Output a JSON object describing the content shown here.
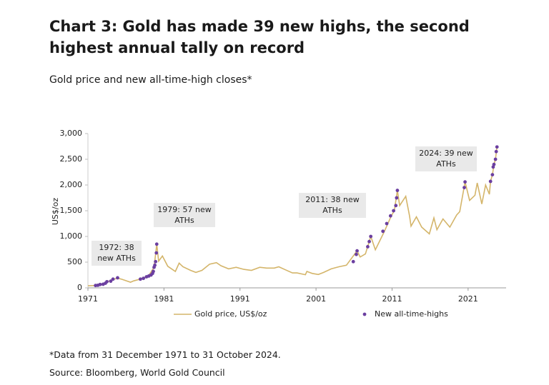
{
  "chart_data": {
    "type": "line",
    "title": "Chart 3: Gold has made 39 new highs, the second highest annual tally on record",
    "subtitle": "Gold price and new all-time-high closes*",
    "y_label": "US$/oz",
    "xlim": [
      1971,
      2026
    ],
    "xticks": [
      1971,
      1981,
      1991,
      2001,
      2011,
      2021
    ],
    "ylim": [
      0,
      3000
    ],
    "yticks": [
      0,
      500,
      {
        "value": 1000,
        "label": "1,000"
      },
      {
        "value": 1500,
        "label": "1,500"
      },
      {
        "value": 2000,
        "label": "2,000"
      },
      {
        "value": 2500,
        "label": "2,500"
      },
      {
        "value": 3000,
        "label": "3,000"
      }
    ],
    "series": [
      {
        "name": "Gold price, US$/oz",
        "color": "#d4b56a",
        "style": "line",
        "x": [
          1971.0,
          1972,
          1973,
          1974,
          1974.9,
          1975.5,
          1976.6,
          1977,
          1978,
          1979,
          1979.7,
          1980.05,
          1980.3,
          1980.8,
          1981.5,
          1982.5,
          1983,
          1983.5,
          1984.5,
          1985.2,
          1986,
          1987,
          1987.9,
          1988.5,
          1989.5,
          1990.5,
          1991.5,
          1992.5,
          1993.6,
          1994.5,
          1995.5,
          1996.1,
          1997,
          1997.9,
          1998.5,
          1999.6,
          1999.8,
          2000.5,
          2001.3,
          2002,
          2003,
          2004,
          2005,
          2006.4,
          2006.8,
          2007.5,
          2008.2,
          2008.8,
          2009.5,
          2010,
          2010.9,
          2011.3,
          2011.7,
          2012,
          2012.8,
          2013.3,
          2013.5,
          2014.2,
          2014.9,
          2015.9,
          2016.5,
          2016.9,
          2017.7,
          2018.6,
          2019.5,
          2019.9,
          2020.6,
          2021.2,
          2021.9,
          2022.2,
          2022.8,
          2023.3,
          2023.8,
          2023.95,
          2024.2,
          2024.4,
          2024.6,
          2024.8
        ],
        "values": [
          40,
          46,
          65,
          150,
          190,
          165,
          110,
          135,
          175,
          240,
          400,
          850,
          520,
          620,
          420,
          320,
          480,
          410,
          340,
          300,
          340,
          460,
          490,
          430,
          370,
          400,
          360,
          340,
          400,
          385,
          385,
          410,
          350,
          290,
          290,
          255,
          320,
          280,
          260,
          300,
          370,
          410,
          440,
          720,
          600,
          660,
          1000,
          740,
          950,
          1100,
          1400,
          1500,
          1895,
          1600,
          1780,
          1400,
          1200,
          1380,
          1180,
          1050,
          1360,
          1130,
          1340,
          1180,
          1420,
          1480,
          2060,
          1700,
          1800,
          2040,
          1630,
          2000,
          1820,
          2070,
          2200,
          2400,
          2500,
          2740
        ]
      },
      {
        "name": "New all-time-highs",
        "color": "#6b3fa0",
        "style": "markers",
        "x": [
          1972.0,
          1972.3,
          1972.6,
          1973.0,
          1973.3,
          1973.5,
          1974.0,
          1974.3,
          1974.9,
          1977.9,
          1978.3,
          1978.7,
          1979.0,
          1979.3,
          1979.5,
          1979.6,
          1979.7,
          1979.8,
          1979.9,
          1980.0,
          1980.05,
          2005.9,
          2006.3,
          2006.4,
          2007.8,
          2008.0,
          2008.2,
          2009.8,
          2010.3,
          2010.8,
          2011.2,
          2011.5,
          2011.6,
          2011.7,
          2020.5,
          2020.6,
          2023.95,
          2024.2,
          2024.3,
          2024.4,
          2024.6,
          2024.7,
          2024.8
        ],
        "values": [
          46,
          50,
          65,
          70,
          90,
          120,
          130,
          170,
          195,
          170,
          185,
          215,
          230,
          250,
          280,
          320,
          400,
          440,
          510,
          680,
          850,
          510,
          650,
          720,
          800,
          900,
          1000,
          1100,
          1250,
          1400,
          1500,
          1600,
          1750,
          1895,
          1950,
          2060,
          2070,
          2200,
          2350,
          2400,
          2500,
          2650,
          2740
        ]
      }
    ],
    "annotations": [
      [
        "1972: 38",
        "new ATHs"
      ],
      [
        "1979: 57 new",
        "ATHs"
      ],
      [
        "2011: 38 new",
        "ATHs"
      ],
      [
        "2024: 39 new",
        "ATHs"
      ]
    ],
    "notes": [
      "*Data from 31 December 1971 to 31 October 2024.",
      "Source: Bloomberg, World Gold Council"
    ]
  }
}
